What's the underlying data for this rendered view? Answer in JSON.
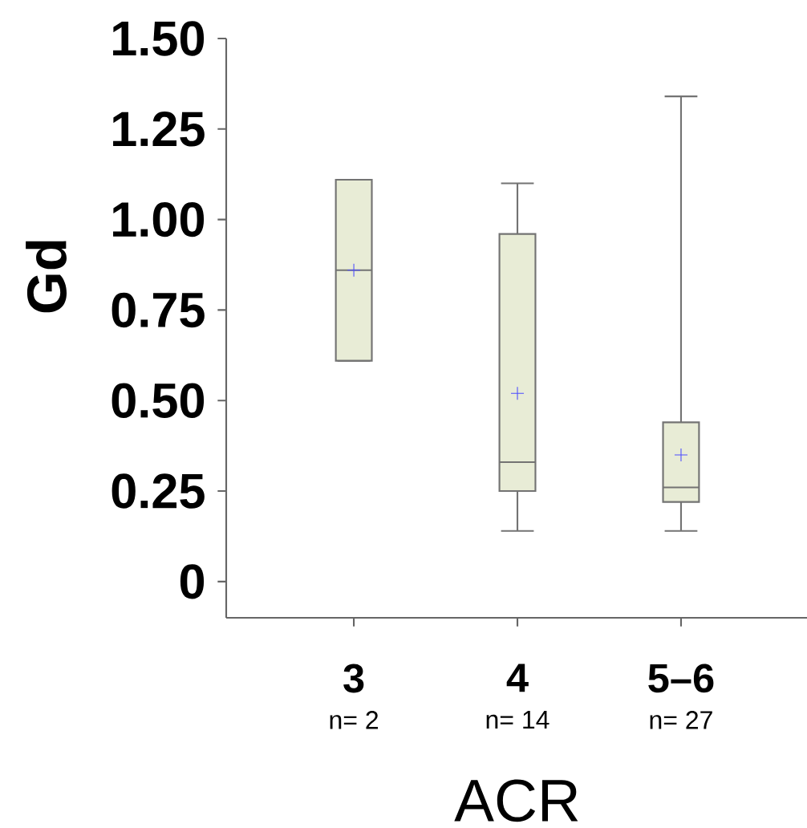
{
  "chart_data": {
    "type": "box",
    "xlabel": "ACR",
    "ylabel": "Gd",
    "categories": [
      "3",
      "4",
      "5–6"
    ],
    "boxes": [
      {
        "low": 0.61,
        "q1": 0.61,
        "median": 0.86,
        "q3": 1.11,
        "high": 1.11,
        "mean": 0.86
      },
      {
        "low": 0.14,
        "q1": 0.25,
        "median": 0.33,
        "q3": 0.96,
        "high": 1.1,
        "mean": 0.52
      },
      {
        "low": 0.14,
        "q1": 0.22,
        "median": 0.26,
        "q3": 0.44,
        "high": 1.34,
        "mean": 0.35
      }
    ],
    "color": "#e8ecd6",
    "ylim": [
      -0.1,
      1.5
    ],
    "yticks": [
      0,
      0.25,
      {
        "value": 0.5,
        "label": "0.50"
      },
      {
        "value": 0.75,
        "label": "0.75"
      },
      {
        "value": 1.0,
        "label": "1.00"
      },
      1.25,
      {
        "value": 1.5,
        "label": "1.50"
      }
    ],
    "annotations": [
      "n= 2",
      "n= 14",
      "n= 27"
    ],
    "grid": false
  }
}
